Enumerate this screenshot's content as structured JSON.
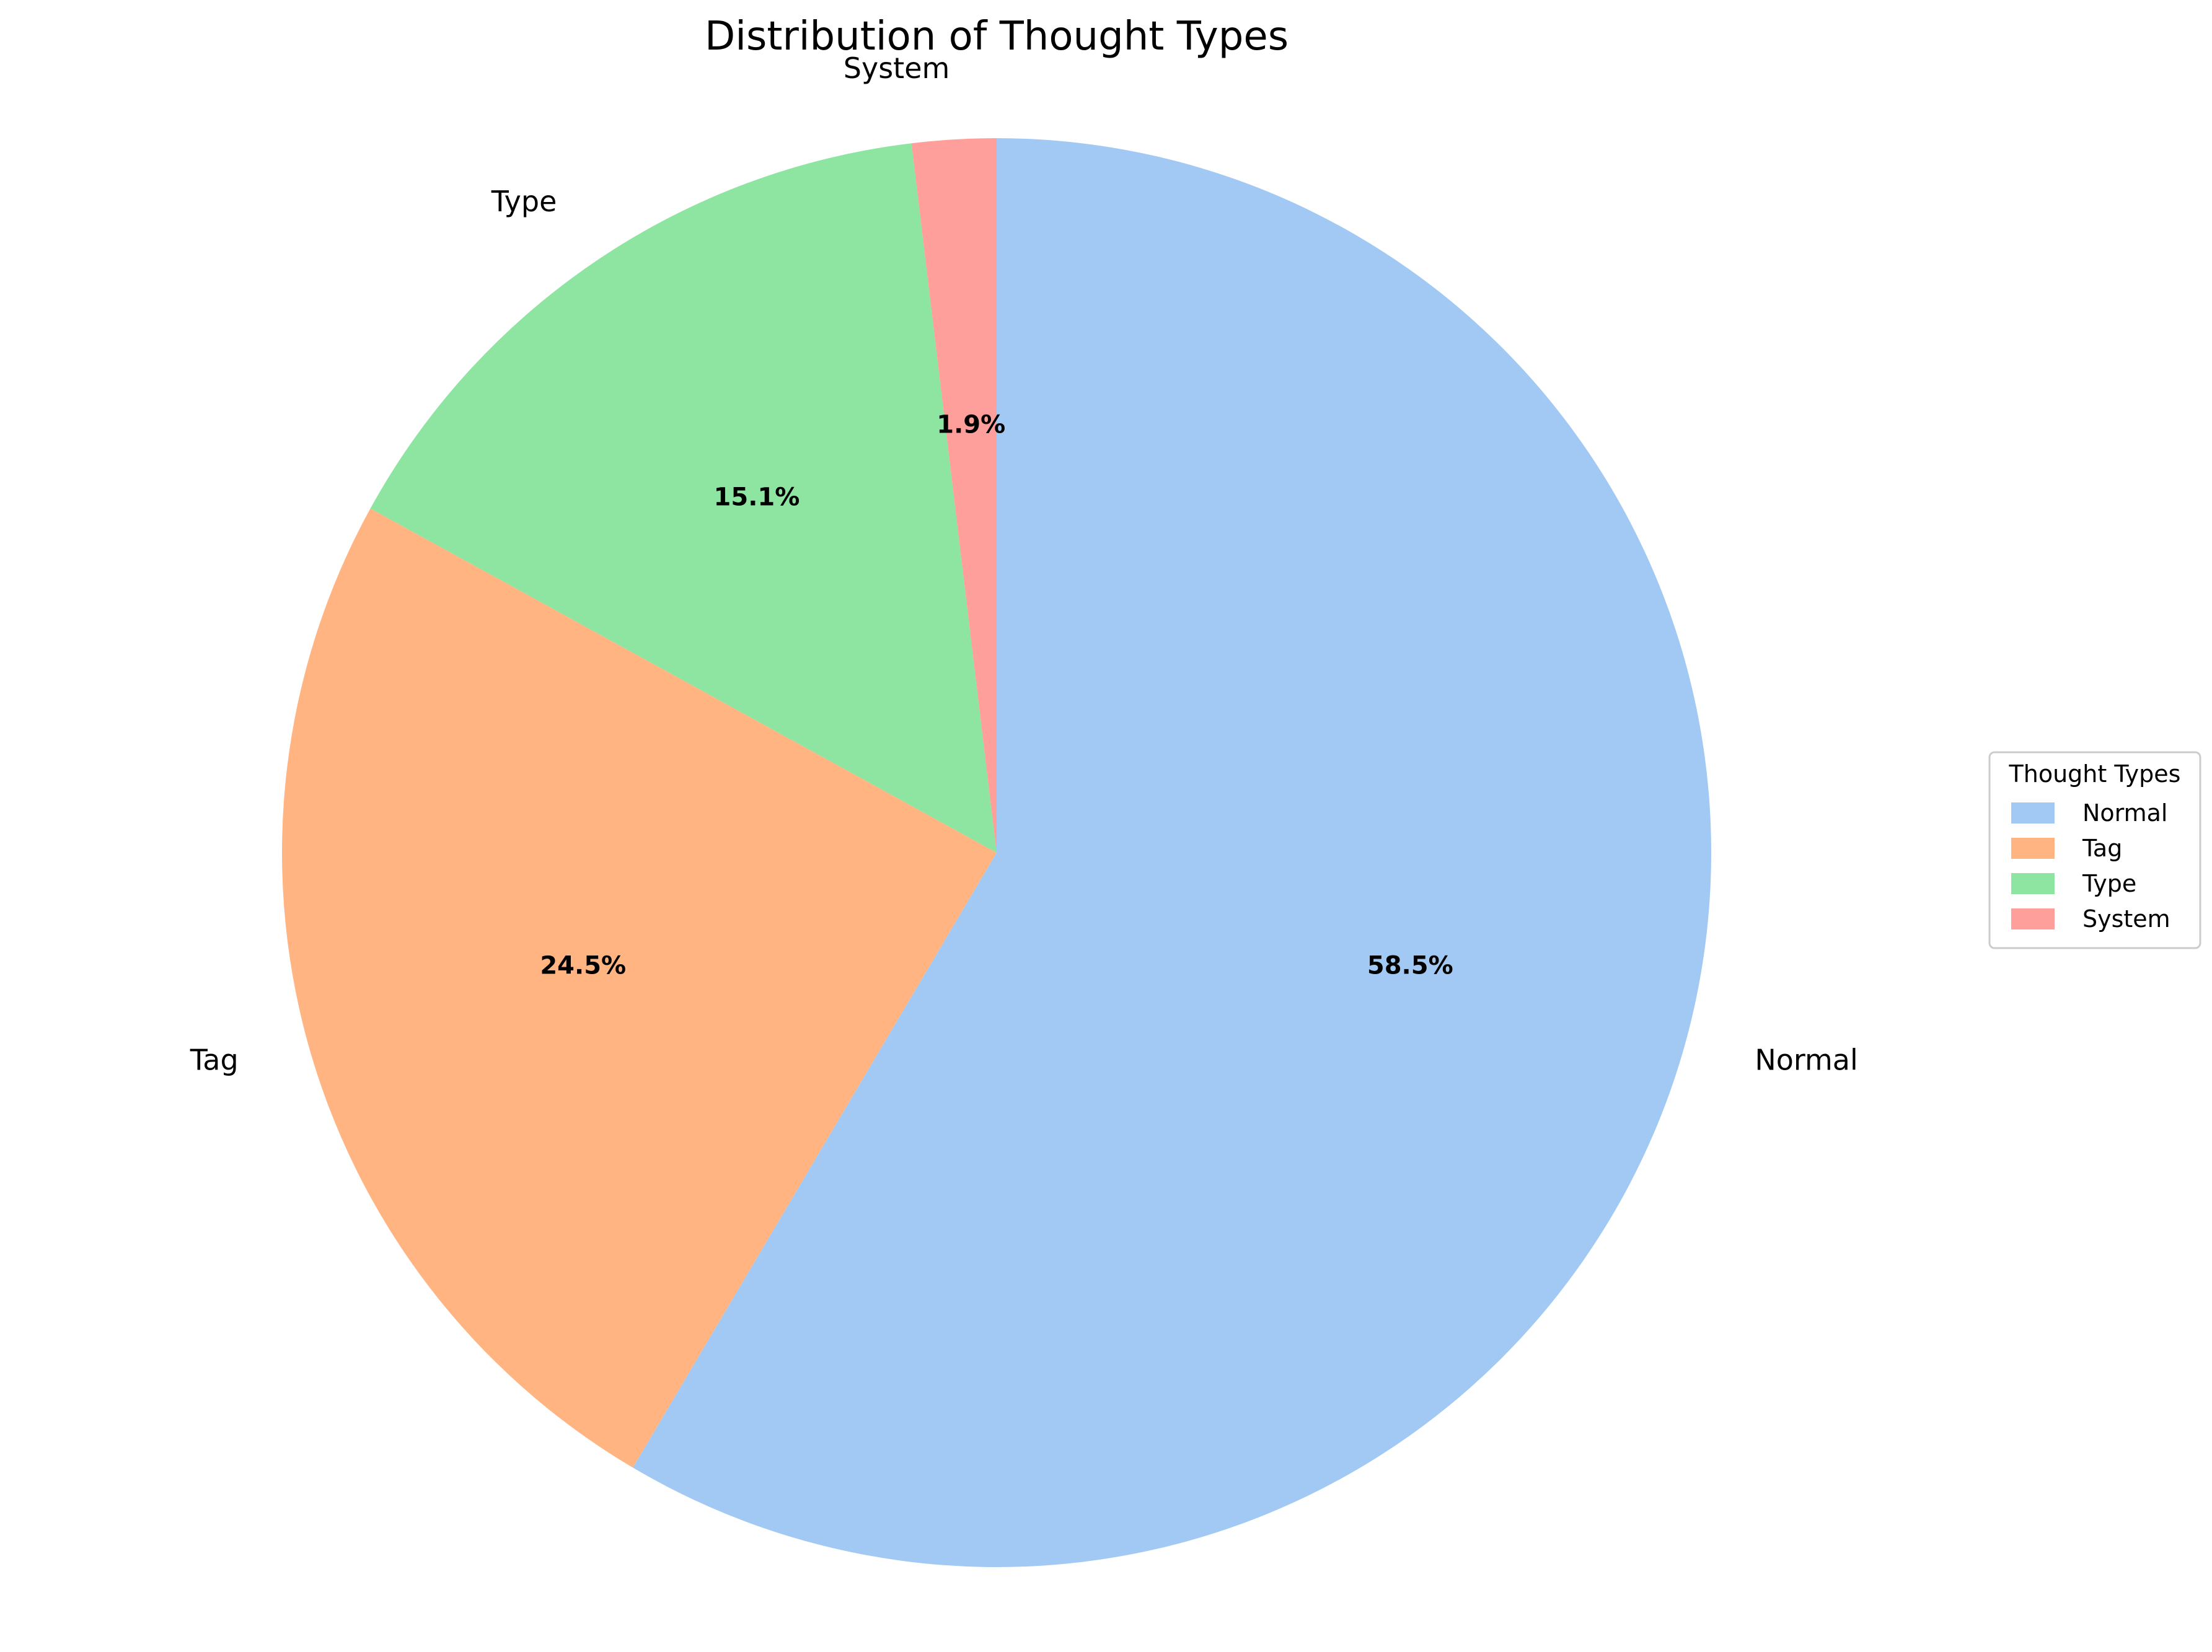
{
  "chart_data": {
    "type": "pie",
    "title": "Distribution of Thought Types",
    "start_angle_deg": 90,
    "direction": "clockwise",
    "slices": [
      {
        "label": "Normal",
        "value": 58.5,
        "pct_label": "58.5%",
        "color": "#a1c9f4"
      },
      {
        "label": "Tag",
        "value": 24.5,
        "pct_label": "24.5%",
        "color": "#ffb482"
      },
      {
        "label": "Type",
        "value": 15.1,
        "pct_label": "15.1%",
        "color": "#8de5a1"
      },
      {
        "label": "System",
        "value": 1.9,
        "pct_label": "1.9%",
        "color": "#ff9f9b"
      }
    ],
    "legend": {
      "title": "Thought Types",
      "placement": "center-right",
      "entries": [
        "Normal",
        "Tag",
        "Type",
        "System"
      ]
    }
  }
}
